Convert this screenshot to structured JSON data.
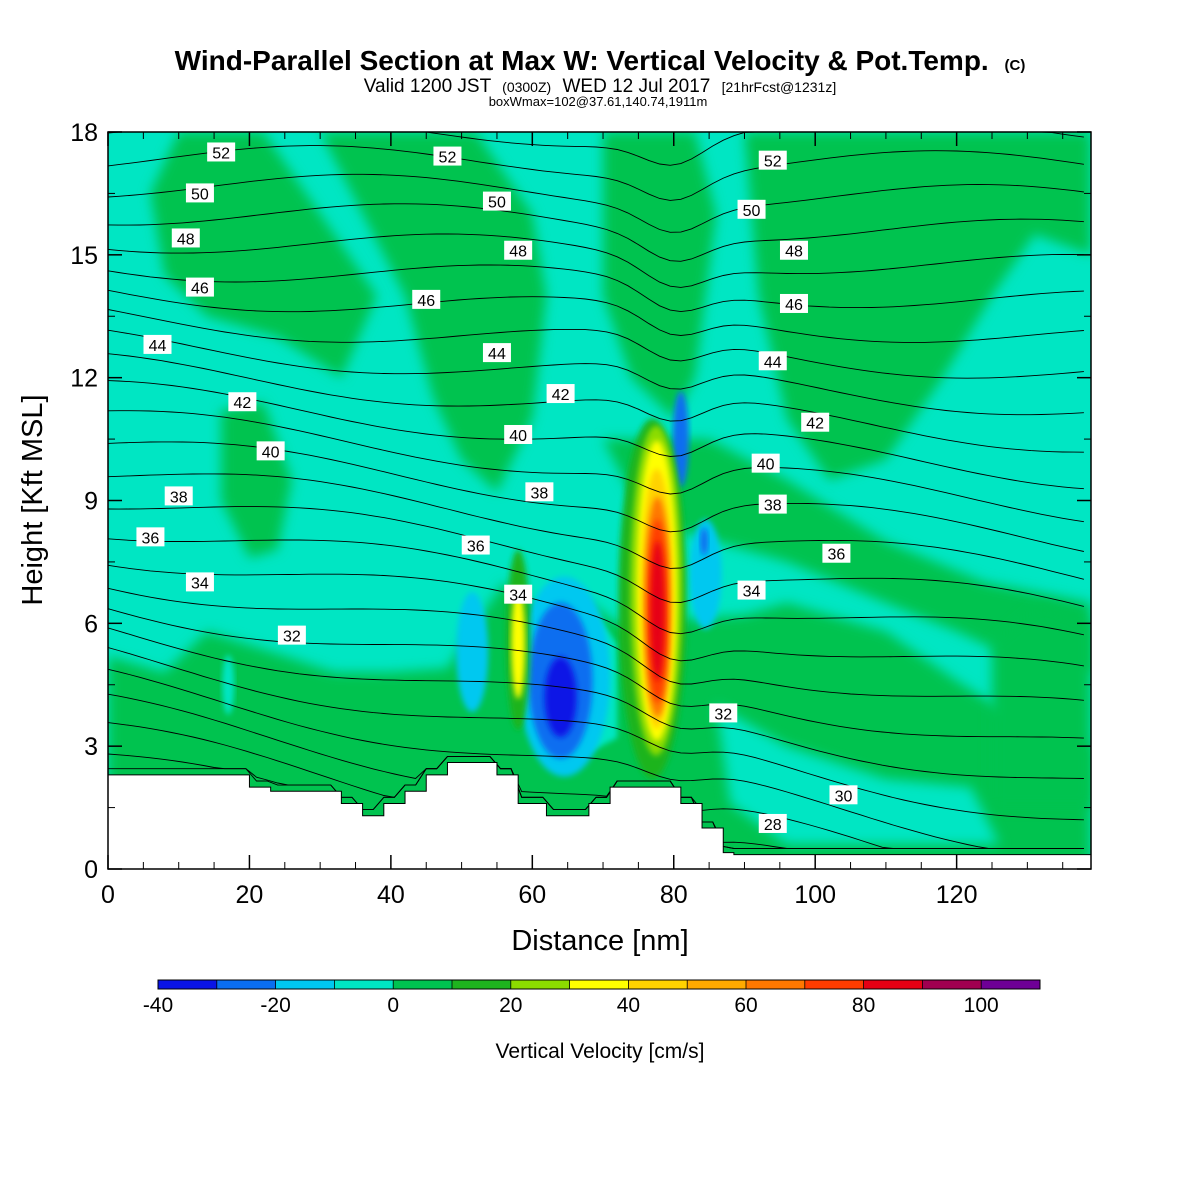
{
  "header": {
    "title": "Wind-Parallel Section at Max W: Vertical Velocity & Pot.Temp.",
    "title_mark": "(C)",
    "valid_prefix": "Valid 1200 JST",
    "valid_utc": "(0300Z)",
    "valid_date": "WED 12 Jul 2017",
    "forecast": "[21hrFcst@1231z]",
    "box_info": "boxWmax=102@37.61,140.74,1911m"
  },
  "chart_data": {
    "type": "heatmap",
    "xlabel": "Distance [nm]",
    "ylabel": "Height [Kft MSL]",
    "xlim": [
      0,
      139
    ],
    "ylim": [
      0,
      18
    ],
    "x_ticks": [
      0,
      20,
      40,
      60,
      80,
      100,
      120
    ],
    "y_ticks": [
      0,
      3,
      6,
      9,
      12,
      15,
      18
    ],
    "colorbar": {
      "title": "Vertical Velocity [cm/s]",
      "bounds": [
        -40,
        -30,
        -20,
        -10,
        0,
        10,
        20,
        30,
        40,
        50,
        60,
        70,
        80,
        90,
        100,
        110
      ],
      "labels": [
        "-40",
        "-20",
        "0",
        "20",
        "40",
        "60",
        "80",
        "100"
      ],
      "label_values": [
        -40,
        -20,
        0,
        20,
        40,
        60,
        80,
        100
      ],
      "colors": [
        "#0a14e6",
        "#0a6ef0",
        "#00c8f0",
        "#00e6c3",
        "#00c350",
        "#1eb41e",
        "#8cdc00",
        "#ffff00",
        "#ffd200",
        "#ffaa00",
        "#ff7800",
        "#ff3c00",
        "#e60014",
        "#a00050",
        "#6e0096"
      ]
    },
    "field_colors": {
      "strong_updraft_core": "#e60014",
      "updraft_orange": "#ff7800",
      "updraft_yellow": "#ffff00",
      "downdraft_blue": "#0a6ef0",
      "downdraft_cyan": "#00c8f0",
      "positive_green": "#00c350",
      "neutral_teal": "#00e6c3",
      "terrain": "#ffffff"
    },
    "terrain_profile": {
      "x": [
        0,
        20,
        20,
        23,
        23,
        33,
        33,
        36,
        36,
        39,
        39,
        42,
        42,
        45,
        45,
        48,
        48,
        55,
        55,
        58,
        58,
        62,
        62,
        68,
        68,
        71,
        71,
        81,
        81,
        84,
        84,
        87,
        87,
        88.5,
        88.5,
        139
      ],
      "height": [
        2.3,
        2.3,
        2.0,
        2.0,
        1.9,
        1.9,
        1.6,
        1.6,
        1.3,
        1.3,
        1.6,
        1.6,
        1.9,
        1.9,
        2.3,
        2.3,
        2.6,
        2.6,
        2.3,
        2.3,
        1.6,
        1.6,
        1.3,
        1.3,
        1.6,
        1.6,
        2.0,
        2.0,
        1.6,
        1.6,
        1.0,
        1.0,
        0.4,
        0.4,
        0.35,
        0.35
      ]
    },
    "theta_contours": {
      "levels": [
        28,
        30,
        32,
        34,
        36,
        38,
        40,
        42,
        44,
        46,
        48,
        50,
        52
      ],
      "labels": [
        {
          "text": "52",
          "x": 16,
          "y": 17.5
        },
        {
          "text": "52",
          "x": 48,
          "y": 17.4
        },
        {
          "text": "52",
          "x": 94,
          "y": 17.3
        },
        {
          "text": "50",
          "x": 13,
          "y": 16.5
        },
        {
          "text": "50",
          "x": 55,
          "y": 16.3
        },
        {
          "text": "50",
          "x": 91,
          "y": 16.1
        },
        {
          "text": "48",
          "x": 11,
          "y": 15.4
        },
        {
          "text": "48",
          "x": 58,
          "y": 15.1
        },
        {
          "text": "48",
          "x": 97,
          "y": 15.1
        },
        {
          "text": "46",
          "x": 13,
          "y": 14.2
        },
        {
          "text": "46",
          "x": 45,
          "y": 13.9
        },
        {
          "text": "46",
          "x": 97,
          "y": 13.8
        },
        {
          "text": "44",
          "x": 7,
          "y": 12.8
        },
        {
          "text": "44",
          "x": 55,
          "y": 12.6
        },
        {
          "text": "44",
          "x": 94,
          "y": 12.4
        },
        {
          "text": "42",
          "x": 19,
          "y": 11.4
        },
        {
          "text": "42",
          "x": 64,
          "y": 11.6
        },
        {
          "text": "42",
          "x": 100,
          "y": 10.9
        },
        {
          "text": "40",
          "x": 23,
          "y": 10.2
        },
        {
          "text": "40",
          "x": 58,
          "y": 10.6
        },
        {
          "text": "40",
          "x": 93,
          "y": 9.9
        },
        {
          "text": "38",
          "x": 10,
          "y": 9.1
        },
        {
          "text": "38",
          "x": 61,
          "y": 9.2
        },
        {
          "text": "38",
          "x": 94,
          "y": 8.9
        },
        {
          "text": "36",
          "x": 6,
          "y": 8.1
        },
        {
          "text": "36",
          "x": 52,
          "y": 7.9
        },
        {
          "text": "36",
          "x": 103,
          "y": 7.7
        },
        {
          "text": "34",
          "x": 13,
          "y": 7.0
        },
        {
          "text": "34",
          "x": 58,
          "y": 6.7
        },
        {
          "text": "34",
          "x": 91,
          "y": 6.8
        },
        {
          "text": "32",
          "x": 26,
          "y": 5.7
        },
        {
          "text": "32",
          "x": 87,
          "y": 3.8
        },
        {
          "text": "30",
          "x": 104,
          "y": 1.8
        },
        {
          "text": "28",
          "x": 94,
          "y": 1.1
        }
      ]
    }
  }
}
